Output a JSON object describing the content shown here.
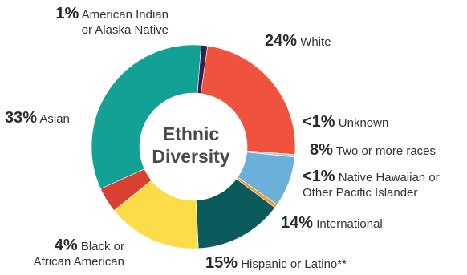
{
  "chart_data": {
    "type": "pie",
    "style": "donut",
    "center_label": [
      "Ethnic",
      "Diversity"
    ],
    "slices": [
      {
        "pct_label": "24%",
        "name": "White",
        "value": 24,
        "color": "#f0533d"
      },
      {
        "pct_label": "<1%",
        "name": "Unknown",
        "value": 0.4,
        "color": "#c8c8c8"
      },
      {
        "pct_label": "8%",
        "name": "Two or more races",
        "value": 8,
        "color": "#6ab0d8"
      },
      {
        "pct_label": "<1%",
        "name": "Native Hawaiian or Other Pacific Islander",
        "name_lines": [
          "Native Hawaiian or",
          "Other Pacific Islander"
        ],
        "value": 0.6,
        "color": "#f39a2b"
      },
      {
        "pct_label": "14%",
        "name": "International",
        "value": 14,
        "color": "#0b5b5c"
      },
      {
        "pct_label": "15%",
        "name": "Hispanic or Latino**",
        "value": 15,
        "color": "#fddc4a"
      },
      {
        "pct_label": "4%",
        "name": "Black or African American",
        "name_lines": [
          "Black or",
          "African American"
        ],
        "value": 4,
        "color": "#d8412f"
      },
      {
        "pct_label": "33%",
        "name": "Asian",
        "value": 33,
        "color": "#14a195"
      },
      {
        "pct_label": "1%",
        "name": "American Indian or Alaska Native",
        "name_lines": [
          "American Indian",
          "or Alaska Native"
        ],
        "value": 1,
        "color": "#3a1d4f"
      }
    ]
  }
}
